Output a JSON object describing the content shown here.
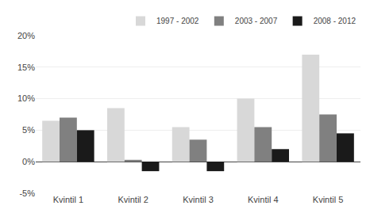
{
  "chart_data": {
    "type": "bar",
    "categories": [
      "Kvintil 1",
      "Kvintil 2",
      "Kvintil 3",
      "Kvintil 4",
      "Kvintil 5"
    ],
    "series": [
      {
        "name": "1997 - 2002",
        "color": "#d8d8d8",
        "values": [
          6.5,
          8.5,
          5.5,
          10.0,
          17.0
        ]
      },
      {
        "name": "2003 - 2007",
        "color": "#808080",
        "values": [
          7.0,
          0.3,
          3.5,
          5.5,
          7.5
        ]
      },
      {
        "name": "2008 - 2012",
        "color": "#1a1a1a",
        "values": [
          5.0,
          -1.5,
          -1.5,
          2.0,
          4.5
        ]
      }
    ],
    "ylim": [
      -5,
      20
    ],
    "yticks": [
      {
        "value": -5,
        "label": "-5%"
      },
      {
        "value": 0,
        "label": "0%"
      },
      {
        "value": 5,
        "label": "5%"
      },
      {
        "value": 10,
        "label": "10%"
      },
      {
        "value": 15,
        "label": "15%"
      },
      {
        "value": 20,
        "label": "20%"
      }
    ],
    "grid": true,
    "legend": "upper right"
  }
}
